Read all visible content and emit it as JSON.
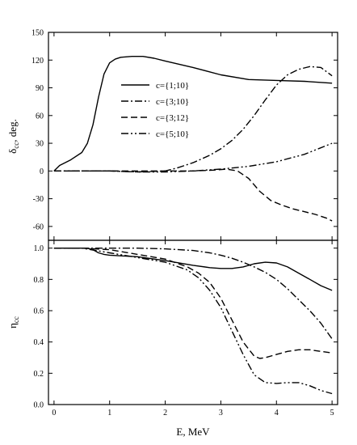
{
  "chart_data": {
    "type": "line",
    "x_axis": {
      "label": "E, MeV",
      "range": [
        -0.1,
        5.1
      ],
      "ticks": [
        0,
        1,
        2,
        3,
        4,
        5
      ]
    },
    "legend": {
      "placement": "center-left"
    },
    "series_styles": [
      {
        "name": "c={1;10}",
        "dash": "solid"
      },
      {
        "name": "c={3;10}",
        "dash": "dash-dot"
      },
      {
        "name": "c={3;12}",
        "dash": "dashed"
      },
      {
        "name": "c={5;10}",
        "dash": "dash-dot-dot"
      }
    ],
    "panels": [
      {
        "id": "delta",
        "ylabel_main": "δ",
        "ylabel_sub": "cc",
        "ylabel_tail": ", deg.",
        "ylim": [
          -75,
          150
        ],
        "yticks": [
          150,
          120,
          90,
          60,
          30,
          0,
          -30,
          -60
        ],
        "series": [
          {
            "name": "c={1;10}",
            "x": [
              0,
              0.1,
              0.3,
              0.5,
              0.6,
              0.7,
              0.8,
              0.9,
              1.0,
              1.1,
              1.2,
              1.4,
              1.6,
              1.8,
              2.0,
              2.5,
              3.0,
              3.5,
              4.0,
              4.5,
              5.0
            ],
            "y": [
              0,
              6,
              12,
              20,
              30,
              50,
              80,
              105,
              117,
              121,
              123,
              124,
              124,
              122,
              119,
              112,
              104,
              99,
              98,
              97,
              95
            ]
          },
          {
            "name": "c={3;10}",
            "x": [
              0,
              0.5,
              1.0,
              1.5,
              2.0,
              2.2,
              2.5,
              2.8,
              3.0,
              3.2,
              3.4,
              3.6,
              3.8,
              4.0,
              4.2,
              4.4,
              4.6,
              4.8,
              5.0
            ],
            "y": [
              0,
              0,
              0,
              -1,
              0,
              3,
              9,
              17,
              24,
              33,
              45,
              60,
              77,
              93,
              104,
              110,
              113,
              112,
              103
            ]
          },
          {
            "name": "c={3;12}",
            "x": [
              0,
              0.5,
              1.0,
              1.5,
              2.0,
              2.5,
              2.9,
              3.1,
              3.3,
              3.5,
              3.7,
              3.9,
              4.1,
              4.3,
              4.5,
              4.7,
              4.9,
              5.0
            ],
            "y": [
              0,
              0,
              0,
              0,
              0,
              0,
              1,
              2,
              0,
              -8,
              -22,
              -32,
              -37,
              -41,
              -44,
              -47,
              -51,
              -54
            ]
          },
          {
            "name": "c={5;10}",
            "x": [
              0,
              0.5,
              1.0,
              1.5,
              2.0,
              2.5,
              3.0,
              3.5,
              4.0,
              4.5,
              5.0
            ],
            "y": [
              0,
              0,
              0,
              -1,
              -1,
              0,
              2,
              5,
              10,
              18,
              30
            ]
          }
        ]
      },
      {
        "id": "eta",
        "ylabel_main": "η",
        "ylabel_sub": "cc",
        "ylabel_tail": "",
        "ylim": [
          0,
          1.05
        ],
        "yticks": [
          1.0,
          0.8,
          0.6,
          0.4,
          0.2,
          0.0
        ],
        "ytick_labels": [
          "1.0",
          "0.8",
          "0.6",
          "0.4",
          "0.2",
          "0.0"
        ],
        "series": [
          {
            "name": "c={1;10}",
            "x": [
              0,
              0.6,
              0.7,
              0.8,
              0.9,
              1.0,
              1.5,
              2.0,
              2.5,
              2.8,
              3.0,
              3.2,
              3.4,
              3.6,
              3.8,
              4.0,
              4.2,
              4.4,
              4.6,
              4.8,
              5.0
            ],
            "y": [
              1.0,
              1.0,
              0.99,
              0.97,
              0.96,
              0.955,
              0.945,
              0.92,
              0.89,
              0.875,
              0.87,
              0.87,
              0.88,
              0.9,
              0.91,
              0.905,
              0.88,
              0.84,
              0.8,
              0.76,
              0.73
            ]
          },
          {
            "name": "c={3;10}",
            "x": [
              0,
              0.5,
              1.0,
              1.5,
              2.0,
              2.5,
              2.8,
              3.0,
              3.2,
              3.4,
              3.6,
              3.8,
              4.0,
              4.2,
              4.4,
              4.6,
              4.8,
              5.0
            ],
            "y": [
              1.0,
              1.0,
              1.0,
              1.0,
              0.995,
              0.985,
              0.97,
              0.955,
              0.935,
              0.91,
              0.88,
              0.845,
              0.8,
              0.74,
              0.67,
              0.6,
              0.52,
              0.42
            ]
          },
          {
            "name": "c={3;12}",
            "x": [
              0,
              0.5,
              1.0,
              1.5,
              2.0,
              2.4,
              2.6,
              2.8,
              3.0,
              3.2,
              3.4,
              3.6,
              3.7,
              3.8,
              4.0,
              4.2,
              4.4,
              4.6,
              4.8,
              5.0
            ],
            "y": [
              1.0,
              1.0,
              0.99,
              0.96,
              0.93,
              0.88,
              0.84,
              0.78,
              0.68,
              0.54,
              0.4,
              0.31,
              0.295,
              0.3,
              0.32,
              0.34,
              0.35,
              0.35,
              0.34,
              0.33
            ]
          },
          {
            "name": "c={5;10}",
            "x": [
              0,
              0.5,
              1.0,
              1.5,
              2.0,
              2.4,
              2.6,
              2.8,
              3.0,
              3.2,
              3.4,
              3.6,
              3.8,
              4.0,
              4.2,
              4.4,
              4.6,
              4.8,
              5.0
            ],
            "y": [
              1.0,
              1.0,
              0.97,
              0.94,
              0.91,
              0.86,
              0.81,
              0.73,
              0.62,
              0.47,
              0.32,
              0.19,
              0.14,
              0.135,
              0.14,
              0.14,
              0.12,
              0.09,
              0.07
            ]
          }
        ]
      }
    ]
  }
}
